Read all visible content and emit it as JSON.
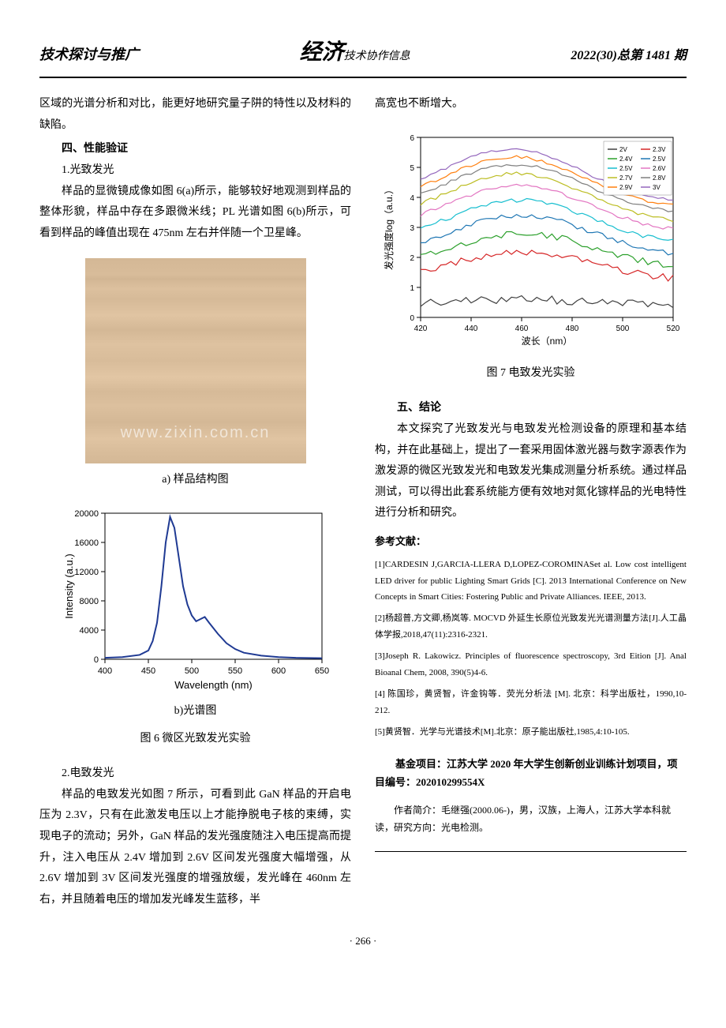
{
  "header": {
    "left": "技术探讨与推广",
    "center_brand": "经济",
    "center_suffix": "技术协作信息",
    "right": "2022(30)总第 1481 期"
  },
  "left_column": {
    "intro_para": "区域的光谱分析和对比，能更好地研究量子阱的特性以及材料的缺陷。",
    "section4_title": "四、性能验证",
    "sub1_title": "1.光致发光",
    "sub1_para": "样品的显微镜成像如图 6(a)所示，能够较好地观测到样品的整体形貌，样品中存在多跟微米线；PL 光谱如图 6(b)所示，可看到样品的峰值出现在 475nm 左右并伴随一个卫星峰。",
    "watermark": "www.zixin.com.cn",
    "fig6a_caption": "a) 样品结构图",
    "fig6b_caption": "b)光谱图",
    "fig6_caption": "图 6 微区光致发光实验",
    "sub2_title": "2.电致发光",
    "sub2_para": "样品的电致发光如图 7 所示，可看到此 GaN 样品的开启电压为 2.3V，只有在此激发电压以上才能挣脱电子核的束缚，实现电子的流动；另外，GaN 样品的发光强度随注入电压提高而提升，注入电压从 2.4V 增加到 2.6V 区间发光强度大幅增强，从 2.6V 增加到 3V 区间发光强度的增强放缓，发光峰在 460nm 左右，并且随着电压的增加发光峰发生蓝移，半"
  },
  "right_column": {
    "cont_para": "高宽也不断增大。",
    "fig7_caption": "图 7 电致发光实验",
    "section5_title": "五、结论",
    "conclusion_para": "本文探究了光致发光与电致发光检测设备的原理和基本结构，并在此基础上，提出了一套采用固体激光器与数字源表作为激发源的微区光致发光和电致发光集成测量分析系统。通过样品测试，可以得出此套系统能方便有效地对氮化镓样品的光电特性进行分析和研究。",
    "ref_title": "参考文献：",
    "refs": [
      "[1]CARDESIN J,GARCIA-LLERA D,LOPEZ-COROMINASet al. Low cost intelligent LED driver for public Lighting Smart Grids [C]. 2013 International Conference on New Concepts in Smart Cities: Fostering Public and Private Alliances. IEEE, 2013.",
      "[2]杨超普,方文卿,杨岚等. MOCVD 外延生长原位光致发光光谱测量方法[J].人工晶体学报,2018,47(11):2316-2321.",
      "[3]Joseph R. Lakowicz. Principles of fluorescence spectroscopy, 3rd Eition [J]. Anal Bioanal Chem, 2008, 390(5)4-6.",
      "[4] 陈国珍，黄贤智，许金钩等．荧光分析法 [M]. 北京：科学出版社，1990,10-212.",
      "[5]黄贤智．光学与光谱技术[M].北京：原子能出版社,1985,4:10-105."
    ],
    "funding": "基金项目：江苏大学 2020 年大学生创新创业训练计划项目，项目编号：202010299554X",
    "author_info": "作者简介：毛继强(2000.06-)，男，汉族，上海人，江苏大学本科就读，研究方向：光电检测。"
  },
  "pl_chart": {
    "type": "line",
    "xlabel": "Wavelength (nm)",
    "ylabel": "Intensity (a.u.)",
    "xlim": [
      400,
      650
    ],
    "ylim": [
      0,
      20000
    ],
    "xticks": [
      400,
      450,
      500,
      550,
      600,
      650
    ],
    "yticks": [
      0,
      4000,
      8000,
      12000,
      16000,
      20000
    ],
    "line_color": "#1f3a93",
    "line_width": 2,
    "background_color": "#ffffff",
    "axis_color": "#000000",
    "label_fontsize": 13,
    "tick_fontsize": 11,
    "data": [
      [
        400,
        200
      ],
      [
        420,
        300
      ],
      [
        440,
        600
      ],
      [
        450,
        1200
      ],
      [
        455,
        2500
      ],
      [
        460,
        5000
      ],
      [
        465,
        10000
      ],
      [
        470,
        16000
      ],
      [
        475,
        19500
      ],
      [
        480,
        18000
      ],
      [
        485,
        14000
      ],
      [
        490,
        10000
      ],
      [
        495,
        7500
      ],
      [
        500,
        6000
      ],
      [
        505,
        5200
      ],
      [
        510,
        5500
      ],
      [
        515,
        5800
      ],
      [
        520,
        5000
      ],
      [
        530,
        3500
      ],
      [
        540,
        2200
      ],
      [
        550,
        1400
      ],
      [
        560,
        900
      ],
      [
        580,
        500
      ],
      [
        600,
        300
      ],
      [
        620,
        200
      ],
      [
        650,
        150
      ]
    ]
  },
  "el_chart": {
    "type": "line",
    "xlabel": "波长（nm）",
    "ylabel": "发光强度log（a.u.）",
    "xlim": [
      420,
      520
    ],
    "ylim": [
      0,
      6
    ],
    "xticks": [
      420,
      440,
      460,
      480,
      500,
      520
    ],
    "yticks": [
      0,
      1,
      2,
      3,
      4,
      5,
      6
    ],
    "background_color": "#ffffff",
    "axis_color": "#000000",
    "label_fontsize": 12,
    "tick_fontsize": 10,
    "legend_position": "top-right",
    "series": [
      {
        "label": "2V",
        "color": "#404040",
        "base": 0.4,
        "peak": 0.6,
        "noise": 0.15
      },
      {
        "label": "2.3V",
        "color": "#d62728",
        "base": 1.2,
        "peak": 2.2,
        "noise": 0.12
      },
      {
        "label": "2.4V",
        "color": "#2ca02c",
        "base": 1.6,
        "peak": 2.8,
        "noise": 0.1
      },
      {
        "label": "2.5V",
        "color": "#1f77b4",
        "base": 2.0,
        "peak": 3.4,
        "noise": 0.08
      },
      {
        "label": "2.5V",
        "color": "#17becf",
        "base": 2.4,
        "peak": 3.9,
        "noise": 0.07
      },
      {
        "label": "2.6V",
        "color": "#e377c2",
        "base": 2.8,
        "peak": 4.4,
        "noise": 0.06
      },
      {
        "label": "2.7V",
        "color": "#bcbd22",
        "base": 3.1,
        "peak": 4.8,
        "noise": 0.06
      },
      {
        "label": "2.8V",
        "color": "#7f7f7f",
        "base": 3.4,
        "peak": 5.1,
        "noise": 0.05
      },
      {
        "label": "2.9V",
        "color": "#ff7f0e",
        "base": 3.6,
        "peak": 5.35,
        "noise": 0.05
      },
      {
        "label": "3V",
        "color": "#9467bd",
        "base": 3.8,
        "peak": 5.6,
        "noise": 0.05
      }
    ]
  },
  "page_number": "· 266 ·"
}
